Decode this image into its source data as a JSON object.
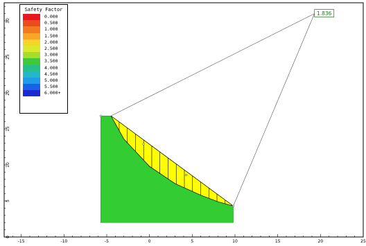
{
  "chart_data": {
    "type": "diagram",
    "x_axis": {
      "range": [
        -17,
        25
      ],
      "ticks": [
        -15,
        -10,
        -5,
        0,
        5,
        10,
        15,
        20,
        25
      ]
    },
    "y_axis": {
      "range": [
        0,
        32.5
      ],
      "ticks": [
        0,
        5,
        10,
        15,
        20,
        25,
        30
      ]
    },
    "slope": {
      "polygon": [
        [
          -5.7,
          2.0
        ],
        [
          -5.7,
          16.8
        ],
        [
          -4.5,
          16.8
        ],
        [
          9.8,
          4.3
        ],
        [
          9.8,
          2.0
        ]
      ],
      "fill": "#33cc33"
    },
    "slip_surface": {
      "points": [
        [
          -4.5,
          16.8
        ],
        [
          -3.0,
          13.6
        ],
        [
          0.0,
          9.8
        ],
        [
          3.0,
          7.4
        ],
        [
          6.0,
          5.8
        ],
        [
          8.0,
          4.9
        ],
        [
          9.8,
          4.3
        ]
      ],
      "fill": "#ffff00",
      "slices": 15
    },
    "slip_center": [
      19.3,
      31.0
    ],
    "safety_factor_label": "1.836",
    "legend": {
      "title": "Safety Factor",
      "items": [
        {
          "label": "0.000",
          "color": "#e8191e"
        },
        {
          "label": "0.500",
          "color": "#ee4a20"
        },
        {
          "label": "1.000",
          "color": "#f47a22"
        },
        {
          "label": "1.500",
          "color": "#f9a626"
        },
        {
          "label": "2.000",
          "color": "#f4d628"
        },
        {
          "label": "2.500",
          "color": "#d8ea2a"
        },
        {
          "label": "3.000",
          "color": "#a6dc2c"
        },
        {
          "label": "3.500",
          "color": "#3ec83a"
        },
        {
          "label": "4.000",
          "color": "#25c08a"
        },
        {
          "label": "4.500",
          "color": "#22b8c8"
        },
        {
          "label": "5.000",
          "color": "#1e9ce8"
        },
        {
          "label": "5.500",
          "color": "#1a60e8"
        },
        {
          "label": "6.000+",
          "color": "#1a2ad0"
        }
      ]
    }
  }
}
